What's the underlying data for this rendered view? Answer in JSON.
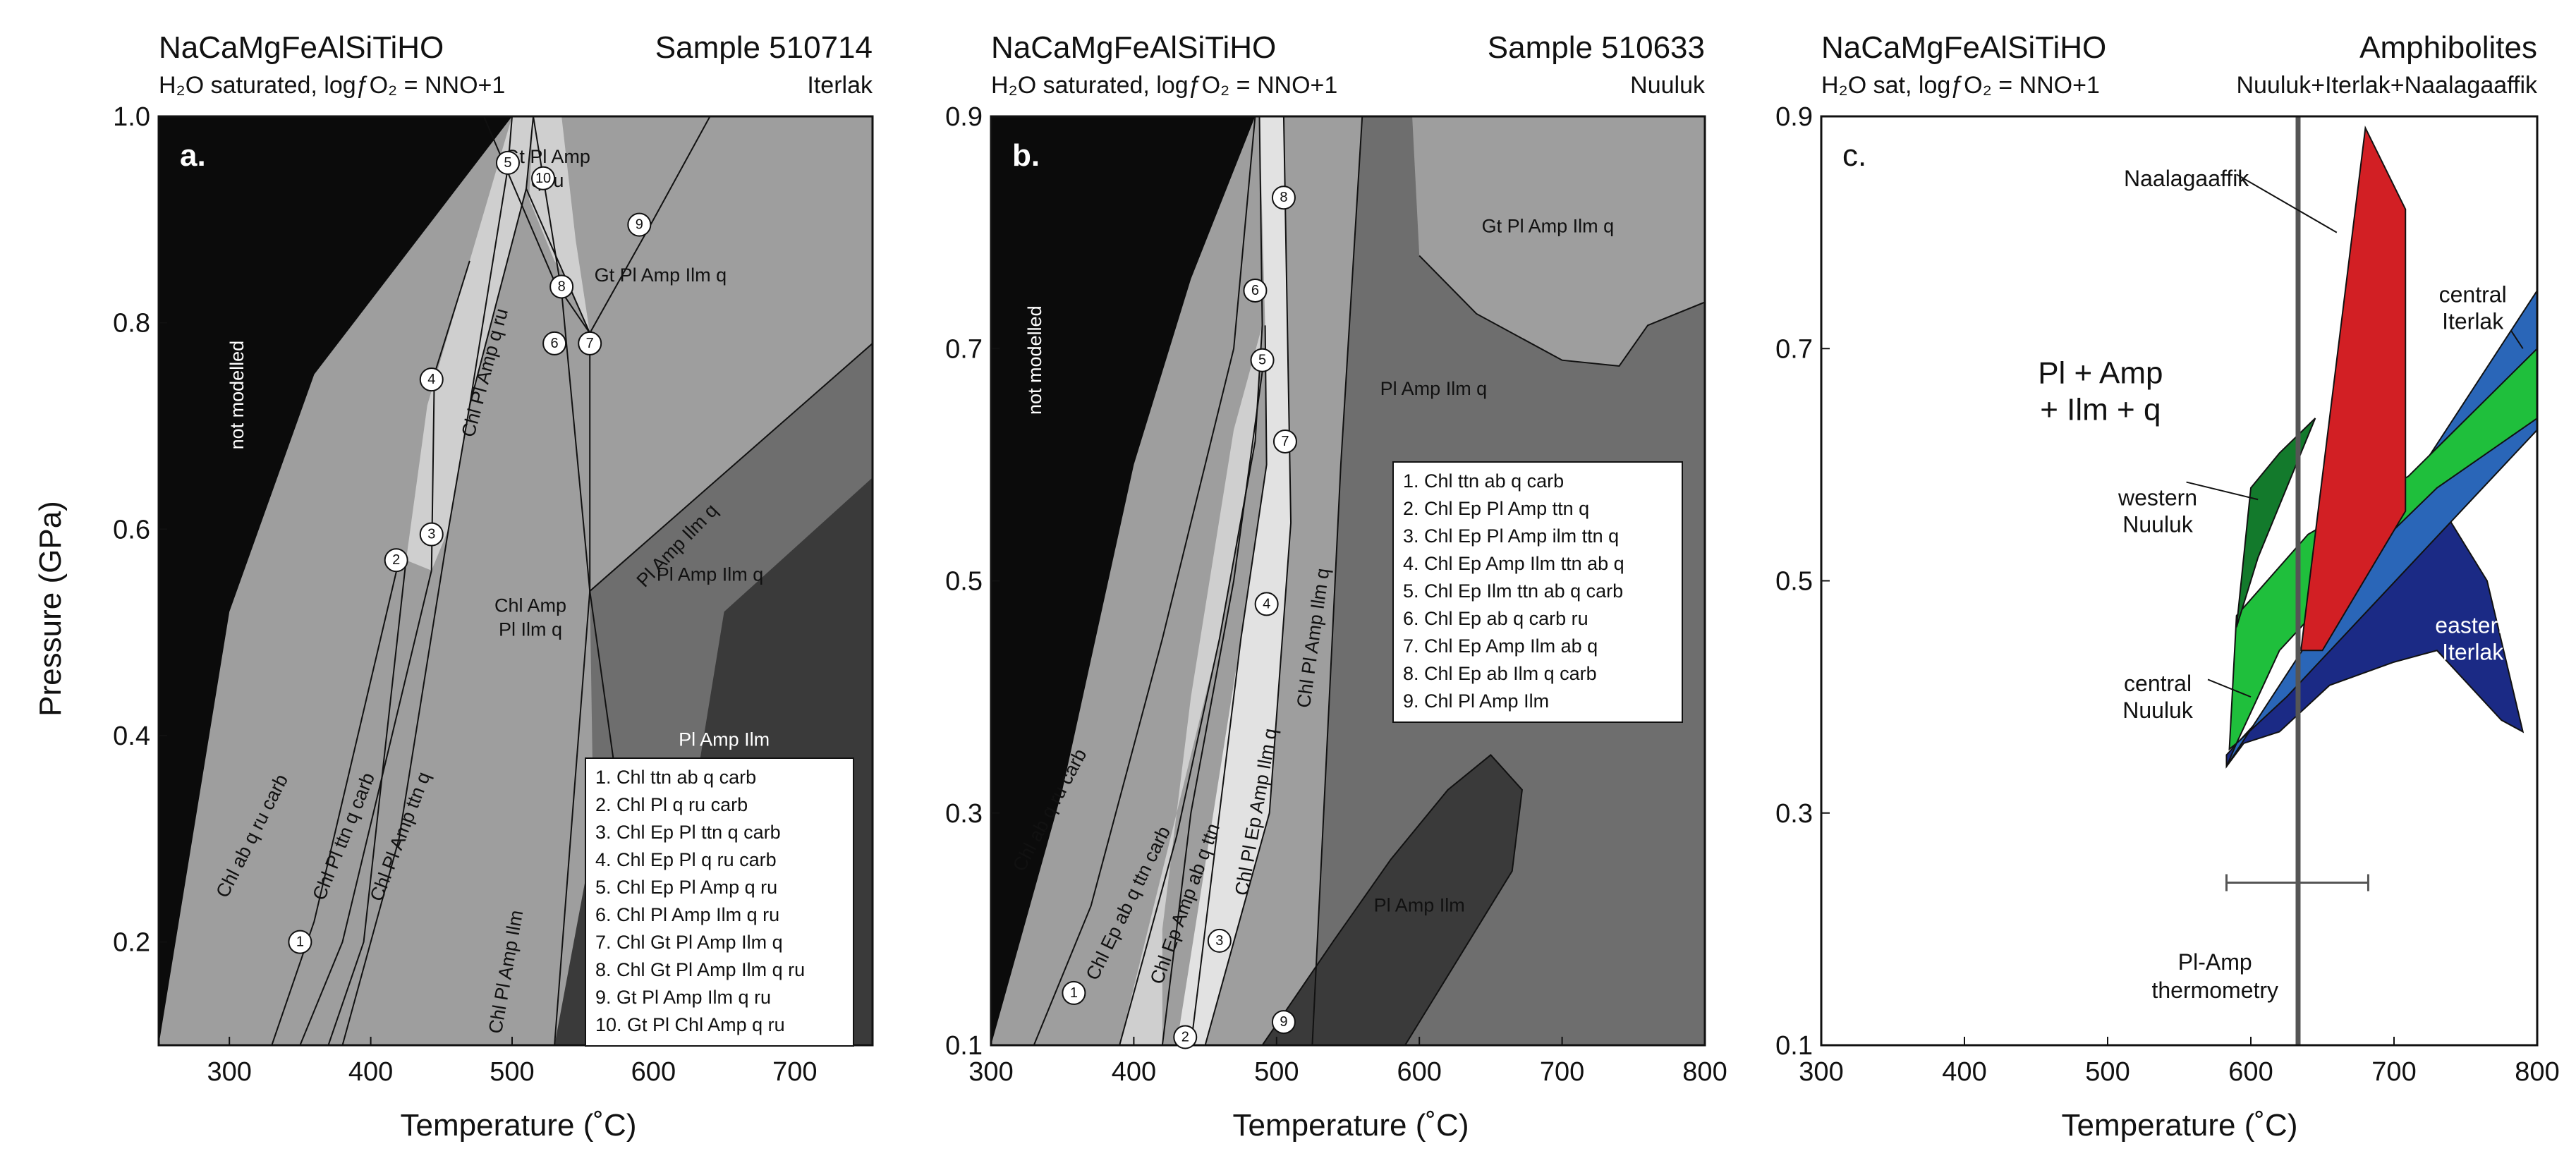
{
  "colors": {
    "black": "#000000",
    "nm_dark": "#0b0b0b",
    "mid": "#9e9e9e",
    "light": "#cfcfcf",
    "lighter": "#e2e2e2",
    "darkgrey": "#6e6e6e",
    "darker": "#3a3a3a",
    "vdark": "#2a2a2a",
    "red": "#d21f24",
    "green": "#1fbf3c",
    "dkgreen": "#137a2c",
    "blue": "#2a66b8",
    "navy": "#1b2a85"
  },
  "chart_data": [
    {
      "type": "area",
      "title": "NaCaMgFeAlSiTiHO",
      "right_title": "Sample 510714",
      "subtitle": "H₂O saturated, logƒO₂ = NNO+1",
      "right_subtitle": "Iterlak",
      "panel_label": "a.",
      "xlabel": "Temperature (˚C)",
      "ylabel": "Pressure (GPa)",
      "xlim": [
        250,
        755
      ],
      "ylim": [
        0.1,
        1.0
      ],
      "xticks": [
        300,
        400,
        500,
        600,
        700
      ],
      "yticks": [
        0.2,
        0.4,
        0.6,
        0.8,
        1.0
      ],
      "ytick_labels": [
        "0.2",
        "0.4",
        "0.6",
        "0.8",
        "1.0"
      ],
      "fields": [
        {
          "label": "not modelled",
          "color": "black",
          "x": 310,
          "y": 0.73,
          "rot": -90,
          "white": true,
          "polygon": [
            [
              250,
              0.1
            ],
            [
              250,
              1.0
            ],
            [
              497,
              1.0
            ],
            [
              500,
              1.0
            ],
            [
              360,
              0.75
            ],
            [
              300,
              0.52
            ],
            [
              250,
              0.1
            ]
          ]
        },
        {
          "label": "Gt Pl Amp\nq ru",
          "color": "mid",
          "x": 525,
          "y": 0.955,
          "polygon": [
            [
              250,
              0.1
            ],
            [
              300,
              0.52
            ],
            [
              360,
              0.75
            ],
            [
              500,
              1.0
            ],
            [
              755,
              1.0
            ],
            [
              755,
              0.1
            ]
          ]
        },
        {
          "label": "Gt Pl Amp Ilm q",
          "color": "mid",
          "x": 605,
          "y": 0.84,
          "polygon": []
        },
        {
          "label": "",
          "color": "light",
          "polygon": [
            [
              500,
              1.0
            ],
            [
              515,
              1.0
            ],
            [
              510,
              0.93
            ],
            [
              470,
              0.72
            ],
            [
              455,
              0.6
            ],
            [
              443,
              0.56
            ],
            [
              425,
              0.57
            ],
            [
              440,
              0.72
            ],
            [
              470,
              0.86
            ]
          ]
        },
        {
          "label": "",
          "color": "light",
          "polygon": [
            [
              515,
              1.0
            ],
            [
              535,
              1.0
            ],
            [
              545,
              0.88
            ],
            [
              555,
              0.79
            ],
            [
              540,
              0.84
            ],
            [
              530,
              0.86
            ],
            [
              512,
              0.92
            ]
          ]
        },
        {
          "label": "Chl Amp\nPl Ilm q",
          "color": "darkgrey",
          "x": 513,
          "y": 0.52,
          "polygon": [
            [
              350,
              0.1
            ],
            [
              420,
              0.57
            ],
            [
              455,
              0.6
            ],
            [
              470,
              0.72
            ],
            [
              510,
              0.93
            ],
            [
              555,
              0.54
            ],
            [
              600,
              0.1
            ]
          ]
        },
        {
          "label": "Pl Amp Ilm q",
          "color": "darkgrey",
          "x": 640,
          "y": 0.55,
          "polygon": [
            [
              555,
              0.54
            ],
            [
              755,
              0.75
            ],
            [
              755,
              0.1
            ],
            [
              600,
              0.1
            ]
          ]
        },
        {
          "label": "Pl Amp Ilm",
          "color": "darker",
          "x": 650,
          "y": 0.39,
          "polygon": [],
          "white": true
        },
        {
          "label": "Chl Pl Amp Ilm",
          "color": "darker",
          "x": 500,
          "y": 0.17,
          "rot": -80,
          "polygon": []
        }
      ],
      "curve_labels": [
        {
          "text": "Chl ab q ru carb",
          "x": 320,
          "y": 0.3,
          "rot": -63
        },
        {
          "text": "Chl Pl ttn q carb",
          "x": 385,
          "y": 0.3,
          "rot": -68
        },
        {
          "text": "Chl Pl Amp ttn q",
          "x": 425,
          "y": 0.3,
          "rot": -69
        },
        {
          "text": "Chl Pl Amp q ru",
          "x": 485,
          "y": 0.75,
          "rot": -75
        },
        {
          "text": "Pl Amp Ilm q",
          "x": 620,
          "y": 0.58,
          "rot": -46
        }
      ],
      "numbered_points": [
        {
          "n": "1",
          "x": 350,
          "y": 0.2
        },
        {
          "n": "2",
          "x": 418,
          "y": 0.57
        },
        {
          "n": "3",
          "x": 443,
          "y": 0.595
        },
        {
          "n": "4",
          "x": 443,
          "y": 0.745
        },
        {
          "n": "5",
          "x": 497,
          "y": 0.955
        },
        {
          "n": "10",
          "x": 522,
          "y": 0.94
        },
        {
          "n": "9",
          "x": 590,
          "y": 0.895
        },
        {
          "n": "8",
          "x": 535,
          "y": 0.835
        },
        {
          "n": "6",
          "x": 530,
          "y": 0.78
        },
        {
          "n": "7",
          "x": 555,
          "y": 0.78
        }
      ],
      "legend": [
        "1. Chl ttn ab q carb",
        "2. Chl Pl q ru carb",
        "3. Chl Ep Pl ttn q carb",
        "4. Chl Ep Pl q ru carb",
        "5. Chl Ep Pl Amp q ru",
        "6. Chl Pl Amp Ilm q ru",
        "7. Chl Gt Pl Amp Ilm q",
        "8. Chl Gt Pl Amp Ilm q ru",
        "9. Gt Pl Amp Ilm q ru",
        "10. Gt Pl Chl Amp q ru"
      ]
    },
    {
      "type": "area",
      "title": "NaCaMgFeAlSiTiHO",
      "right_title": "Sample 510633",
      "subtitle": "H₂O saturated, logƒO₂ = NNO+1",
      "right_subtitle": "Nuuluk",
      "panel_label": "b.",
      "xlabel": "Temperature (˚C)",
      "ylabel": "",
      "xlim": [
        300,
        800
      ],
      "ylim": [
        0.1,
        0.9
      ],
      "xticks": [
        300,
        400,
        500,
        600,
        700,
        800
      ],
      "yticks": [
        0.1,
        0.3,
        0.5,
        0.7,
        0.9
      ],
      "ytick_labels": [
        "0.1",
        "0.3",
        "0.5",
        "0.7",
        "0.9"
      ],
      "fields": [
        {
          "label": "not modelled",
          "color": "black",
          "x": 335,
          "y": 0.69,
          "rot": -90,
          "white": true,
          "polygon": [
            [
              300,
              0.1
            ],
            [
              300,
              0.9
            ],
            [
              485,
              0.9
            ],
            [
              440,
              0.76
            ],
            [
              400,
              0.6
            ],
            [
              350,
              0.32
            ],
            [
              300,
              0.1
            ]
          ]
        },
        {
          "label": "Gt Pl Amp Ilm q",
          "color": "mid",
          "x": 690,
          "y": 0.8,
          "polygon": [
            [
              595,
              0.9
            ],
            [
              800,
              0.9
            ],
            [
              800,
              0.74
            ],
            [
              760,
              0.72
            ],
            [
              740,
              0.685
            ],
            [
              700,
              0.69
            ],
            [
              640,
              0.73
            ],
            [
              600,
              0.78
            ]
          ]
        },
        {
          "label": "Pl Amp Ilm q",
          "color": "darkgrey",
          "x": 610,
          "y": 0.66,
          "polygon": []
        },
        {
          "label": "Pl Amp Ilm",
          "color": "darker",
          "x": 600,
          "y": 0.215,
          "polygon": [
            [
              490,
              0.1
            ],
            [
              540,
              0.19
            ],
            [
              580,
              0.26
            ],
            [
              620,
              0.32
            ],
            [
              650,
              0.35
            ],
            [
              672,
              0.32
            ],
            [
              665,
              0.25
            ],
            [
              630,
              0.18
            ],
            [
              590,
              0.1
            ]
          ]
        }
      ],
      "curve_labels": [
        {
          "text": "Chl ab q ru carb",
          "x": 345,
          "y": 0.3,
          "rot": -62
        },
        {
          "text": "Chl Ep ab q ttn carb",
          "x": 400,
          "y": 0.22,
          "rot": -64
        },
        {
          "text": "Chl Ep Amp ab q ttn",
          "x": 440,
          "y": 0.22,
          "rot": -70
        },
        {
          "text": "Chl Pl Ep Amp Ilm q",
          "x": 490,
          "y": 0.3,
          "rot": -80
        },
        {
          "text": "Chl Pl Amp Ilm q",
          "x": 530,
          "y": 0.45,
          "rot": -82
        }
      ],
      "numbered_points": [
        {
          "n": "8",
          "x": 505,
          "y": 0.83
        },
        {
          "n": "6",
          "x": 485,
          "y": 0.75
        },
        {
          "n": "5",
          "x": 490,
          "y": 0.69
        },
        {
          "n": "7",
          "x": 506,
          "y": 0.62
        },
        {
          "n": "4",
          "x": 493,
          "y": 0.48
        },
        {
          "n": "3",
          "x": 460,
          "y": 0.19
        },
        {
          "n": "1",
          "x": 358,
          "y": 0.145
        },
        {
          "n": "2",
          "x": 436,
          "y": 0.107
        },
        {
          "n": "9",
          "x": 505,
          "y": 0.12
        }
      ],
      "legend": [
        "1. Chl ttn ab q carb",
        "2. Chl Ep Pl Amp ttn q",
        "3. Chl Ep Pl Amp ilm ttn q",
        "4. Chl Ep Amp Ilm ttn ab q",
        "5. Chl Ep Ilm ttn ab q carb",
        "6. Chl Ep ab q carb ru",
        "7. Chl Ep Amp Ilm ab q",
        "8. Chl Ep ab Ilm q carb",
        "9. Chl Pl Amp Ilm"
      ]
    },
    {
      "type": "area",
      "title": "NaCaMgFeAlSiTiHO",
      "right_title": "Amphibolites",
      "subtitle": "H₂O sat, logƒO₂ = NNO+1",
      "right_subtitle": "Nuuluk+Iterlak+Naalagaaffik",
      "panel_label": "c.",
      "xlabel": "Temperature (˚C)",
      "ylabel": "",
      "xlim": [
        300,
        800
      ],
      "ylim": [
        0.1,
        0.9
      ],
      "xticks": [
        300,
        400,
        500,
        600,
        700,
        800
      ],
      "yticks": [
        0.1,
        0.3,
        0.5,
        0.7,
        0.9
      ],
      "ytick_labels": [
        "0.1",
        "0.3",
        "0.5",
        "0.7",
        "0.9"
      ],
      "field_label": "Pl + Amp\n+ Ilm + q",
      "thermometry": {
        "label": "Pl-Amp\nthermometry",
        "mean": 633,
        "min": 583,
        "max": 682,
        "y": 0.24
      },
      "regions": [
        {
          "name": "eastern Iterlak",
          "color": "navy",
          "label_x": 755,
          "label_y": 0.455,
          "polygon": [
            [
              583,
              0.35
            ],
            [
              650,
              0.44
            ],
            [
              700,
              0.52
            ],
            [
              735,
              0.56
            ],
            [
              750,
              0.53
            ],
            [
              765,
              0.5
            ],
            [
              790,
              0.37
            ],
            [
              775,
              0.38
            ],
            [
              730,
              0.44
            ],
            [
              700,
              0.43
            ],
            [
              655,
              0.41
            ],
            [
              620,
              0.37
            ],
            [
              595,
              0.36
            ],
            [
              583,
              0.34
            ]
          ]
        },
        {
          "name": "central Iterlak",
          "color": "blue",
          "label_x": 755,
          "label_y": 0.74,
          "polygon": [
            [
              583,
              0.34
            ],
            [
              800,
              0.75
            ],
            [
              800,
              0.63
            ],
            [
              625,
              0.4
            ],
            [
              590,
              0.36
            ]
          ]
        },
        {
          "name": "central Nuuluk",
          "color": "green",
          "label_x": 535,
          "label_y": 0.405,
          "polygon": [
            [
              585,
              0.355
            ],
            [
              590,
              0.47
            ],
            [
              640,
              0.54
            ],
            [
              710,
              0.59
            ],
            [
              800,
              0.7
            ],
            [
              800,
              0.64
            ],
            [
              730,
              0.58
            ],
            [
              680,
              0.52
            ],
            [
              620,
              0.44
            ],
            [
              590,
              0.36
            ]
          ]
        },
        {
          "name": "western Nuuluk",
          "color": "dkgreen",
          "label_x": 535,
          "label_y": 0.565,
          "polygon": [
            [
              590,
              0.46
            ],
            [
              600,
              0.58
            ],
            [
              620,
              0.61
            ],
            [
              645,
              0.64
            ],
            [
              625,
              0.58
            ],
            [
              605,
              0.52
            ]
          ]
        },
        {
          "name": "Naalagaaffik",
          "color": "red",
          "label_x": 555,
          "label_y": 0.84,
          "polygon": [
            [
              635,
              0.44
            ],
            [
              680,
              0.89
            ],
            [
              708,
              0.82
            ],
            [
              708,
              0.56
            ],
            [
              650,
              0.44
            ]
          ]
        }
      ]
    }
  ]
}
